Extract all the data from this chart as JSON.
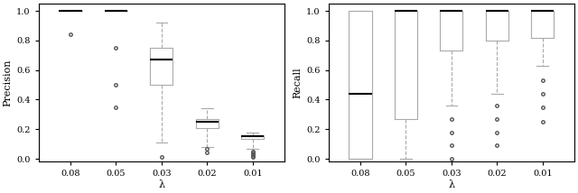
{
  "xlabel": "λ",
  "ylabel_left": "Precision",
  "ylabel_right": "Recall",
  "categories": [
    "0.08",
    "0.05",
    "0.03",
    "0.02",
    "0.01"
  ],
  "precision": {
    "0.08": {
      "whislo": 1.0,
      "q1": 1.0,
      "med": 1.0,
      "q3": 1.0,
      "whishi": 1.0,
      "fliers": [
        0.84
      ]
    },
    "0.05": {
      "whislo": 1.0,
      "q1": 1.0,
      "med": 1.0,
      "q3": 1.0,
      "whishi": 1.0,
      "fliers": [
        0.75,
        0.5,
        0.35
      ]
    },
    "0.03": {
      "whislo": 0.11,
      "q1": 0.5,
      "med": 0.67,
      "q3": 0.75,
      "whishi": 0.92,
      "fliers": [
        0.01
      ]
    },
    "0.02": {
      "whislo": 0.08,
      "q1": 0.21,
      "med": 0.25,
      "q3": 0.27,
      "whishi": 0.34,
      "fliers": [
        0.07,
        0.04
      ]
    },
    "0.01": {
      "whislo": 0.07,
      "q1": 0.135,
      "med": 0.15,
      "q3": 0.16,
      "whishi": 0.18,
      "fliers": [
        0.05,
        0.04,
        0.03,
        0.02,
        0.01
      ]
    }
  },
  "recall": {
    "0.08": {
      "whislo": 0.0,
      "q1": 0.0,
      "med": 0.44,
      "q3": 1.0,
      "whishi": 1.0,
      "fliers": []
    },
    "0.05": {
      "whislo": 0.0,
      "q1": 0.27,
      "med": 1.0,
      "q3": 1.0,
      "whishi": 1.0,
      "fliers": []
    },
    "0.03": {
      "whislo": 0.36,
      "q1": 0.73,
      "med": 1.0,
      "q3": 1.0,
      "whishi": 1.0,
      "fliers": [
        0.0,
        0.09,
        0.18,
        0.27
      ]
    },
    "0.02": {
      "whislo": 0.44,
      "q1": 0.8,
      "med": 1.0,
      "q3": 1.0,
      "whishi": 1.0,
      "fliers": [
        0.09,
        0.18,
        0.27,
        0.36
      ]
    },
    "0.01": {
      "whislo": 0.63,
      "q1": 0.82,
      "med": 1.0,
      "q3": 1.0,
      "whishi": 1.0,
      "fliers": [
        0.25,
        0.35,
        0.44,
        0.53
      ]
    }
  },
  "figsize": [
    6.4,
    2.14
  ],
  "dpi": 100,
  "ylim": [
    -0.02,
    1.05
  ],
  "yticks": [
    0.0,
    0.2,
    0.4,
    0.6,
    0.8,
    1.0
  ],
  "yticklabels": [
    "0.0",
    "0.2",
    "0.4",
    "0.6",
    "0.8",
    "1.0"
  ],
  "spine_color": "#000000",
  "box_color": "#aaaaaa",
  "median_color": "#000000",
  "whisker_color": "#aaaaaa",
  "flier_color": "#555555",
  "box_width": 0.5,
  "font_size": 7,
  "label_font_size": 8
}
